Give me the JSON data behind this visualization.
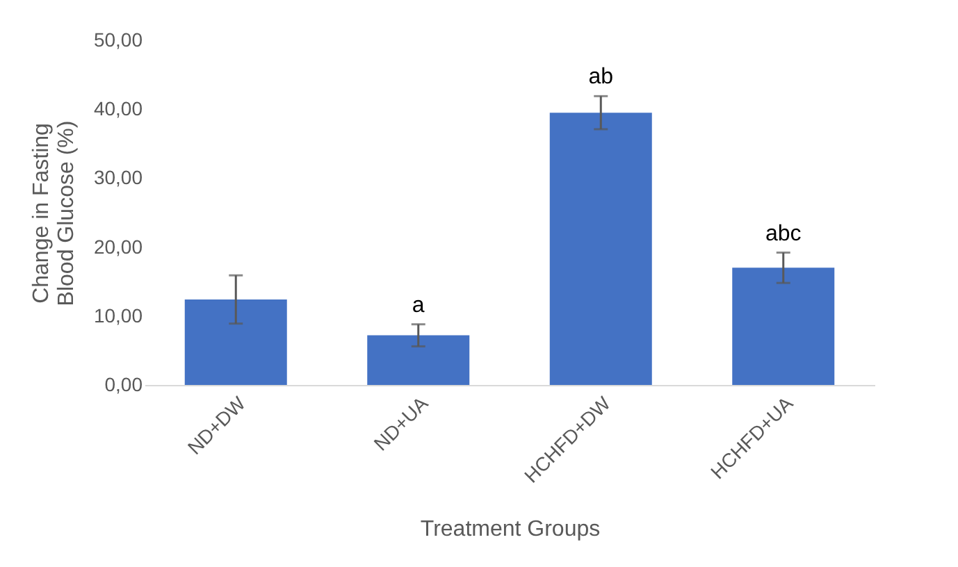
{
  "chart_data": {
    "type": "bar",
    "xlabel": "Treatment Groups",
    "ylabel": "Change in Fasting Blood Glucose  (%)",
    "categories": [
      "ND+DW",
      "ND+UA",
      "HCHFD+DW",
      "HCHFD+UA"
    ],
    "values": [
      12.4,
      7.2,
      39.5,
      17.0
    ],
    "errors": [
      3.5,
      1.6,
      2.4,
      2.2
    ],
    "color": "#4472c4",
    "ylim": [
      0,
      50
    ],
    "yticks": [
      {
        "value": 0,
        "label": "0,00"
      },
      {
        "value": 10,
        "label": "10,00"
      },
      {
        "value": 20,
        "label": "20,00"
      },
      {
        "value": 30,
        "label": "30,00"
      },
      {
        "value": 40,
        "label": "40,00"
      },
      {
        "value": 50,
        "label": "50,00"
      }
    ],
    "annotations": [
      "a",
      "ab",
      "abc"
    ],
    "grid": false
  }
}
